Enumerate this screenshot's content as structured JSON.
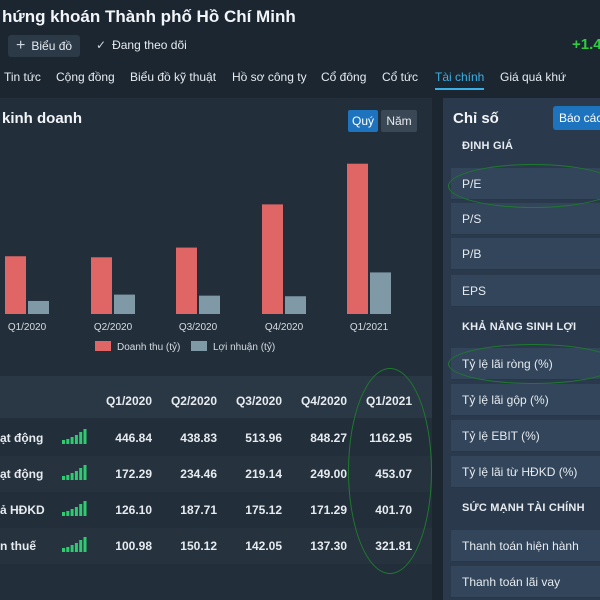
{
  "header": {
    "title": "hứng khoán Thành phố Hồ Chí Minh",
    "chart_button": "Biểu đồ",
    "follow_label": "Đang theo dõi",
    "change": "+1.4"
  },
  "nav": {
    "tabs": [
      "Tin tức",
      "Cộng đồng",
      "Biểu đồ kỹ thuật",
      "Hồ sơ công ty",
      "Cổ đông",
      "Cổ tức",
      "Tài chính",
      "Giá quá khứ"
    ],
    "active": "Tài chính"
  },
  "business": {
    "title": "kinh doanh",
    "toggle_quarter": "Quý",
    "toggle_year": "Năm"
  },
  "chart_data": {
    "type": "bar",
    "categories": [
      "Q1/2020",
      "Q2/2020",
      "Q3/2020",
      "Q4/2020",
      "Q1/2021"
    ],
    "series": [
      {
        "name": "Doanh thu (tỷ)",
        "values": [
          446.84,
          438.83,
          513.96,
          848.27,
          1162.95
        ],
        "color": "#e06666"
      },
      {
        "name": "Lợi nhuận (tỷ)",
        "values": [
          100.98,
          150.12,
          142.05,
          137.3,
          321.81
        ],
        "color": "#7f9aa6"
      }
    ],
    "ylim": [
      0,
      1300
    ],
    "legend": "bottom",
    "grid": false
  },
  "table": {
    "headers": [
      "Q1/2020",
      "Q2/2020",
      "Q3/2020",
      "Q4/2020",
      "Q1/2021"
    ],
    "rows": [
      {
        "label": "ạt động",
        "values": [
          "446.84",
          "438.83",
          "513.96",
          "848.27",
          "1162.95"
        ]
      },
      {
        "label": "ạt động",
        "values": [
          "172.29",
          "234.46",
          "219.14",
          "249.00",
          "453.07"
        ]
      },
      {
        "label": "ả HĐKD",
        "values": [
          "126.10",
          "187.71",
          "175.12",
          "171.29",
          "401.70"
        ]
      },
      {
        "label": "n thuế",
        "values": [
          "100.98",
          "150.12",
          "142.05",
          "137.30",
          "321.81"
        ]
      }
    ]
  },
  "ratios": {
    "title": "Chỉ số",
    "report_button": "Báo các",
    "sections": [
      {
        "name": "ĐỊNH GIÁ",
        "items": [
          "P/E",
          "P/S",
          "P/B",
          "EPS"
        ]
      },
      {
        "name": "KHẢ NĂNG SINH LỢI",
        "items": [
          "Tỷ lệ lãi ròng (%)",
          "Tỷ lệ lãi gộp (%)",
          "Tỷ lệ EBIT (%)",
          "Tỷ lệ lãi từ HĐKD (%)"
        ]
      },
      {
        "name": "SỨC MẠNH TÀI CHÍNH",
        "items": [
          "Thanh toán hiện hành",
          "Thanh toán lãi vay"
        ]
      }
    ]
  },
  "colors": {
    "accent": "#1e73be",
    "positive": "#2ecc40",
    "revenue_bar": "#e06666",
    "profit_bar": "#7f9aa6",
    "spark": "#2ecc71",
    "annotation": "#1f7a2e"
  }
}
